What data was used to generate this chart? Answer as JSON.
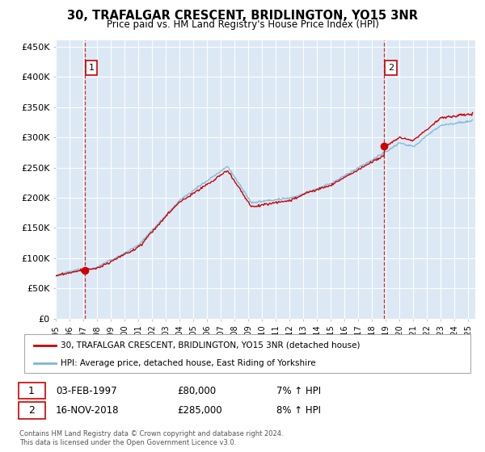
{
  "title": "30, TRAFALGAR CRESCENT, BRIDLINGTON, YO15 3NR",
  "subtitle": "Price paid vs. HM Land Registry's House Price Index (HPI)",
  "ylabel_ticks": [
    "£0",
    "£50K",
    "£100K",
    "£150K",
    "£200K",
    "£250K",
    "£300K",
    "£350K",
    "£400K",
    "£450K"
  ],
  "ytick_values": [
    0,
    50000,
    100000,
    150000,
    200000,
    250000,
    300000,
    350000,
    400000,
    450000
  ],
  "ylim": [
    0,
    460000
  ],
  "xlim_start": 1995.0,
  "xlim_end": 2025.5,
  "background_color": "#dce9f5",
  "legend_line1": "30, TRAFALGAR CRESCENT, BRIDLINGTON, YO15 3NR (detached house)",
  "legend_line2": "HPI: Average price, detached house, East Riding of Yorkshire",
  "sale1_label": "1",
  "sale1_date": "03-FEB-1997",
  "sale1_price": "£80,000",
  "sale1_hpi": "7% ↑ HPI",
  "sale1_year": 1997.09,
  "sale1_value": 80000,
  "sale2_label": "2",
  "sale2_date": "16-NOV-2018",
  "sale2_price": "£285,000",
  "sale2_hpi": "8% ↑ HPI",
  "sale2_year": 2018.88,
  "sale2_value": 285000,
  "footnote": "Contains HM Land Registry data © Crown copyright and database right 2024.\nThis data is licensed under the Open Government Licence v3.0.",
  "hpi_line_color": "#7ab4d8",
  "price_line_color": "#cc0000",
  "vline_color": "#cc0000",
  "sale_dot_color": "#cc0000"
}
